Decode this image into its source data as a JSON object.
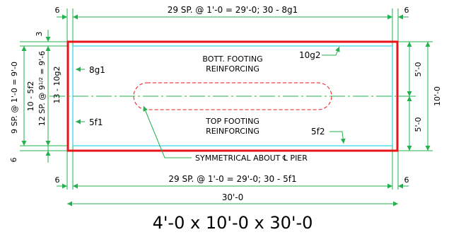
{
  "drawing": {
    "top_dimension": "29 SP. @ 1'-0 = 29'-0; 30 - 8g1",
    "bottom_dimension": "29 SP. @ 1'-0 = 29'-0; 30 - 5f1",
    "overall_length": "30'-0",
    "edge_left_top": "6",
    "edge_right_top": "6",
    "edge_left_bottom": "6",
    "edge_right_bottom": "6",
    "left_top_offset": "3",
    "left_bottom_offset": "6",
    "left_vertical_1": "9 SP. @ 1'-0 = 9'-0",
    "left_vertical_2": "10 - 5f2",
    "left_vertical_3a": "12 SP. @ 9",
    "left_vertical_3frac": "1/2",
    "left_vertical_3b": " = 9'-6",
    "left_vertical_4": "13 - 10g2",
    "right_upper_half": "5'-0",
    "right_lower_half": "5'-0",
    "right_overall": "10'-0",
    "label_8g1": "8g1",
    "label_10g2": "10g2",
    "label_5f1": "5f1",
    "label_5f2": "5f2",
    "bott_line1": "BOTT. FOOTING",
    "bott_line2": "REINFORCING",
    "top_line1": "TOP FOOTING",
    "top_line2": "REINFORCING",
    "symmetry_note": "SYMMETRICAL ABOUT ℄ PIER",
    "title": "4'-0 x 10'-0 x 30'-0"
  },
  "colors": {
    "outline": "#e8141b",
    "reinforcing": "#2fd5e6",
    "dimension": "#22b14c",
    "centerline": "#22b14c",
    "pier": "#e8141b",
    "text": "#000000"
  }
}
